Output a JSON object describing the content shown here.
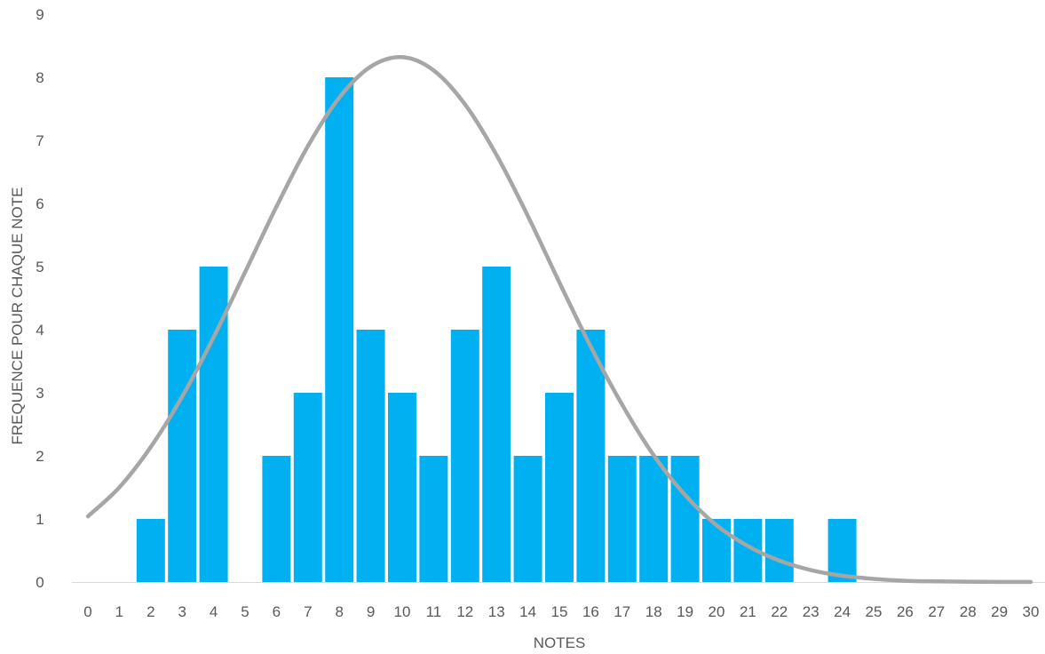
{
  "chart_data": {
    "type": "bar",
    "title": "",
    "xlabel": "NOTES",
    "ylabel": "FREQUENCE POUR CHAQUE NOTE",
    "ylim": [
      0,
      9
    ],
    "yticks": [
      "0",
      "1",
      "2",
      "3",
      "4",
      "5",
      "6",
      "7",
      "8",
      "9"
    ],
    "categories": [
      "0",
      "1",
      "2",
      "3",
      "4",
      "5",
      "6",
      "7",
      "8",
      "9",
      "10",
      "11",
      "12",
      "13",
      "14",
      "15",
      "16",
      "17",
      "18",
      "19",
      "20",
      "21",
      "22",
      "23",
      "24",
      "25",
      "26",
      "27",
      "28",
      "29",
      "30"
    ],
    "values": [
      0,
      0,
      1,
      4,
      5,
      0,
      2,
      3,
      8,
      4,
      3,
      2,
      4,
      5,
      2,
      3,
      4,
      2,
      2,
      2,
      1,
      1,
      1,
      0,
      1,
      0,
      0,
      0,
      0,
      0,
      0
    ],
    "curve": {
      "type": "line",
      "x": [
        0,
        1,
        2,
        3,
        4,
        5,
        6,
        7,
        8,
        9,
        10,
        11,
        12,
        13,
        14,
        15,
        16,
        17,
        18,
        19,
        20,
        21,
        22,
        23,
        24,
        25,
        26,
        27,
        28,
        29,
        30
      ],
      "y": [
        1.04,
        1.5,
        2.14,
        2.94,
        3.88,
        4.91,
        5.95,
        6.91,
        7.68,
        8.17,
        8.32,
        8.11,
        7.57,
        6.77,
        5.8,
        4.75,
        3.73,
        2.81,
        2.01,
        1.38,
        0.9,
        0.57,
        0.34,
        0.19,
        0.1,
        0.05,
        0.02,
        0.01,
        0.005,
        0.002,
        0.001
      ]
    },
    "grid": false,
    "legend": "none",
    "colors": {
      "bar": "#00B0F0",
      "curve": "#A6A6A6",
      "axis": "#D9D9D9",
      "text": "#595959"
    }
  }
}
